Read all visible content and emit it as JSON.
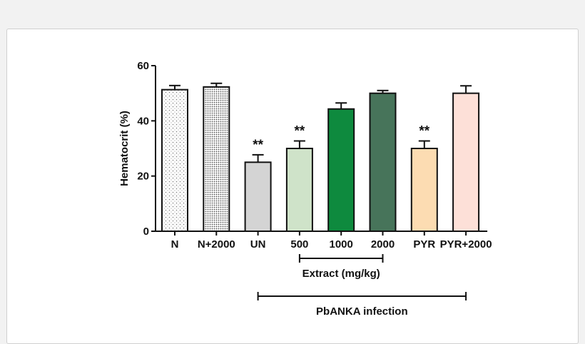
{
  "colors": {
    "axis": "#111111",
    "page_bg": "#f2f2f2",
    "card_bg": "#ffffff"
  },
  "chart_data": {
    "type": "bar",
    "ylabel": "Hematocrit (%)",
    "ylim": [
      0,
      60
    ],
    "yticks": [
      "0",
      "20",
      "40",
      "60"
    ],
    "categories": [
      "N",
      "N+2000",
      "UN",
      "500",
      "1000",
      "2000",
      "PYR",
      "PYR+2000"
    ],
    "values": [
      51.3,
      52.3,
      25.0,
      30.0,
      44.3,
      50.0,
      30.0,
      50.0
    ],
    "errors": [
      1.5,
      1.3,
      2.7,
      2.7,
      2.2,
      1.0,
      2.7,
      2.7
    ],
    "colors": [
      "#ffffff",
      "#ffffff",
      "#d4d4d4",
      "#cfe3c9",
      "#0e8a3e",
      "#47745a",
      "#fcdcb2",
      "#fde0d8"
    ],
    "patterns": [
      "sparse-dots",
      "dense-dots",
      "",
      "",
      "",
      "",
      "",
      ""
    ],
    "significance": [
      "",
      "",
      "**",
      "**",
      "",
      "",
      "**",
      ""
    ],
    "groups": [
      {
        "label": "Extract (mg/kg)",
        "from": 3,
        "to": 5
      },
      {
        "label": "PbANKA infection",
        "from": 2,
        "to": 7
      }
    ]
  }
}
